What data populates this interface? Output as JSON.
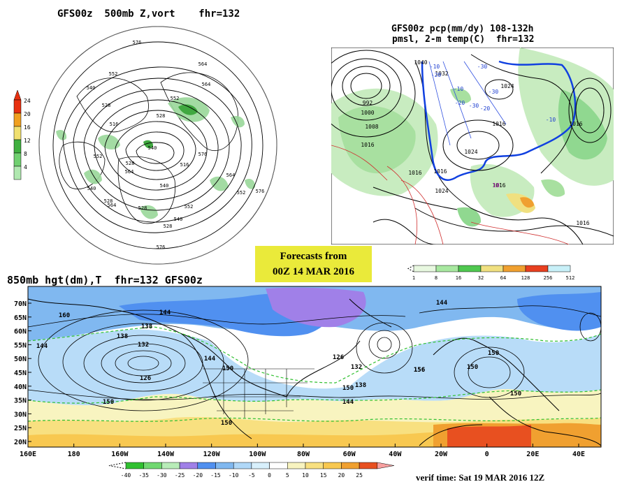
{
  "panels": {
    "vort": {
      "title": "GFS00z  500mb Z,vort    fhr=132",
      "colorbar_ticks": [
        "24",
        "20",
        "16",
        "12",
        "8",
        "4"
      ],
      "colorbar_colors": [
        "#e83010",
        "#f0a020",
        "#f0e070",
        "#40b040",
        "#70d070",
        "#b0e8b0"
      ],
      "contour_labels": [
        "576",
        "564",
        "552",
        "540",
        "528",
        "516",
        "540",
        "528",
        "552",
        "564",
        "576",
        "564",
        "552",
        "540",
        "528",
        "528",
        "540",
        "516",
        "552",
        "540",
        "528",
        "564",
        "552",
        "528",
        "576",
        "564",
        "576"
      ]
    },
    "precip": {
      "title_line1": "GFS00z pcp(mm/dy) 108-132h",
      "title_line2": "pmsl, 2-m temp(C)  fhr=132",
      "pressure_labels": [
        "992",
        "1000",
        "1008",
        "1016",
        "1024",
        "1016",
        "1024",
        "1016",
        "1024",
        "1016",
        "1040",
        "1032",
        "1016",
        "1016",
        "1016"
      ],
      "temp_labels": [
        "-10",
        "-20",
        "-30",
        "-10",
        "-20",
        "-30",
        "-10",
        "10",
        "-20",
        "-30"
      ],
      "colorbar_ticks": [
        "1",
        "8",
        "16",
        "32",
        "64",
        "128",
        "256",
        "512"
      ],
      "colorbar_colors": [
        "#e8f8e0",
        "#a8e8a0",
        "#50c850",
        "#f0e080",
        "#f0a030",
        "#e84020",
        "#c8f0f8"
      ]
    },
    "banner": {
      "line1": "Forecasts from",
      "line2": "00Z 14 MAR 2016"
    },
    "hgt": {
      "title": "850mb hgt(dm),T  fhr=132 GFS00z",
      "lat_ticks": [
        "70N",
        "65N",
        "60N",
        "55N",
        "50N",
        "45N",
        "40N",
        "35N",
        "30N",
        "25N",
        "20N"
      ],
      "lon_ticks": [
        "160E",
        "180",
        "160W",
        "140W",
        "120W",
        "100W",
        "80W",
        "60W",
        "40W",
        "20W",
        "0",
        "20E",
        "40E"
      ],
      "height_labels": [
        "160",
        "144",
        "138",
        "132",
        "138",
        "144",
        "126",
        "150",
        "150",
        "144",
        "150",
        "126",
        "132",
        "138",
        "144",
        "150",
        "144",
        "156",
        "150",
        "150",
        "150",
        "156"
      ],
      "colorbar_ticks": [
        "-40",
        "-35",
        "-30",
        "-25",
        "-20",
        "-15",
        "-10",
        "-5",
        "0",
        "5",
        "10",
        "15",
        "20",
        "25"
      ],
      "colorbar_colors": [
        "#30c030",
        "#70d870",
        "#b8ecb8",
        "#a080e8",
        "#5090f0",
        "#80b8f0",
        "#b0d8f8",
        "#d8f0fc",
        "#ffffff",
        "#f8f4c0",
        "#f8e080",
        "#f8c850",
        "#f0a030",
        "#e85020",
        "#f8a0a0"
      ],
      "verif_time": "verif time: Sat 19 MAR 2016 12Z"
    }
  }
}
